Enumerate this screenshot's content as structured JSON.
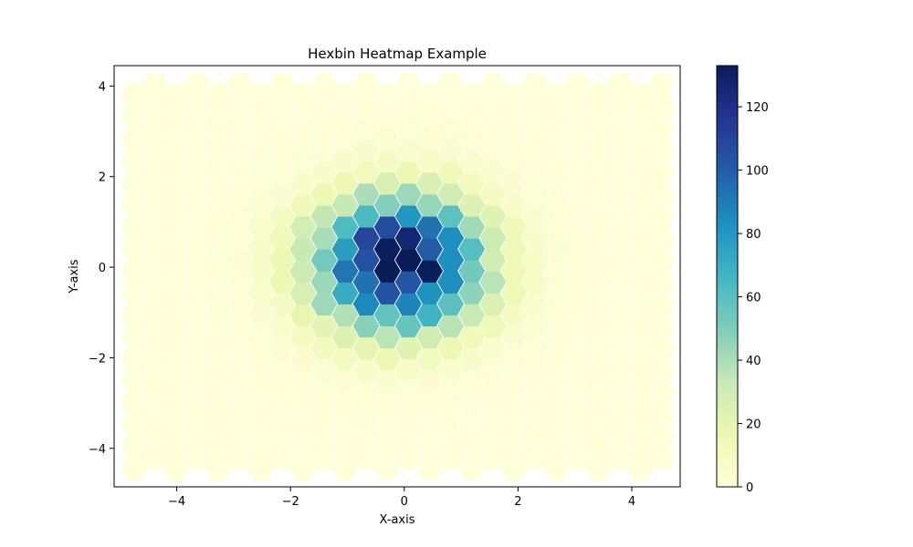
{
  "chart_data": {
    "type": "heatmap",
    "subtype": "hexbin",
    "title": "Hexbin Heatmap Example",
    "xlabel": "X-axis",
    "ylabel": "Y-axis",
    "xlim": [
      -5.1,
      4.85
    ],
    "ylim": [
      -4.85,
      4.45
    ],
    "xticks": [
      -4,
      -2,
      0,
      2,
      4
    ],
    "yticks": [
      -4,
      -2,
      0,
      2,
      4
    ],
    "xtick_labels": [
      "−4",
      "−2",
      "0",
      "2",
      "4"
    ],
    "ytick_labels": [
      "−4",
      "−2",
      "0",
      "2",
      "4"
    ],
    "colormap": "YlGnBu",
    "colorbar": {
      "range": [
        0,
        133
      ],
      "ticks": [
        0,
        20,
        40,
        60,
        80,
        100,
        120
      ],
      "tick_labels": [
        "0",
        "20",
        "40",
        "60",
        "80",
        "100",
        "120"
      ]
    },
    "grid": false,
    "hexbin": {
      "x_extent": [
        -4.75,
        4.5
      ],
      "y_extent": [
        -4.45,
        4.05
      ],
      "x_step": 0.371,
      "y_step": 0.485,
      "distribution": "2D standard normal around (0, 0)",
      "peak_count": 133,
      "peak_location": [
        -0.1,
        0.1
      ]
    }
  }
}
